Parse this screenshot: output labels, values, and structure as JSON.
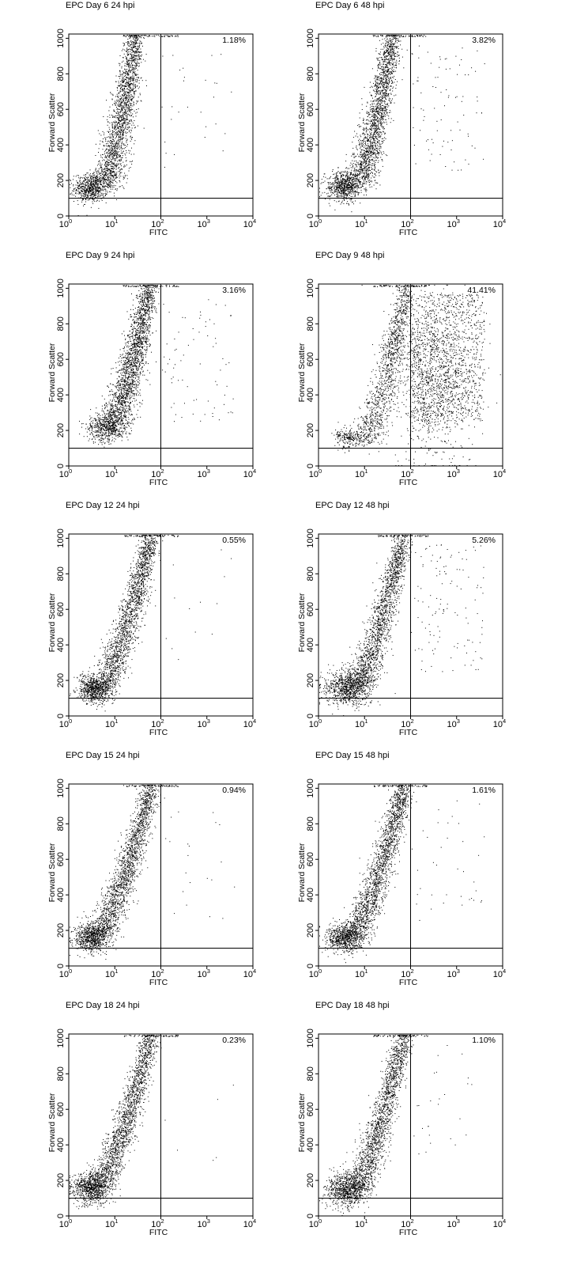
{
  "figure": {
    "x_axis_label": "FITC",
    "y_axis_label": "Forward Scatter",
    "x_tick_labels": [
      {
        "base": "10",
        "exp": "0"
      },
      {
        "base": "10",
        "exp": "1"
      },
      {
        "base": "10",
        "exp": "2"
      },
      {
        "base": "10",
        "exp": "3"
      },
      {
        "base": "10",
        "exp": "4"
      }
    ],
    "y_tick_labels": [
      "0",
      "200",
      "400",
      "600",
      "800",
      "1000"
    ],
    "colors": {
      "points": "#000000",
      "frame": "#000000",
      "background": "#ffffff"
    }
  },
  "chart_data": [
    {
      "type": "scatter",
      "title": "EPC Day 6 24 hpi",
      "percent_label": "1.18%",
      "percent_positive": 1.18,
      "xlabel": "FITC",
      "ylabel": "Forward Scatter",
      "xscale": "log",
      "xlim": [
        1,
        10000
      ],
      "ylim": [
        0,
        1024
      ],
      "gate": {
        "x": 100,
        "y": 100
      },
      "populations": [
        {
          "x_center": 3,
          "y_center": 160,
          "share": 0.25,
          "spread_log": 0.18,
          "spread_y": 40
        },
        {
          "x_from": 6,
          "x_to": 28,
          "y_from": 180,
          "y_to": 1010,
          "share": 0.75
        }
      ]
    },
    {
      "type": "scatter",
      "title": "EPC Day 6 48 hpi",
      "percent_label": "3.82%",
      "percent_positive": 3.82,
      "xlabel": "FITC",
      "ylabel": "Forward Scatter",
      "xscale": "log",
      "xlim": [
        1,
        10000
      ],
      "ylim": [
        0,
        1024
      ],
      "gate": {
        "x": 100,
        "y": 100
      },
      "populations": [
        {
          "x_center": 3.5,
          "y_center": 170,
          "share": 0.25,
          "spread_log": 0.18,
          "spread_y": 40
        },
        {
          "x_from": 7,
          "x_to": 40,
          "y_from": 180,
          "y_to": 1010,
          "share": 0.75
        }
      ]
    },
    {
      "type": "scatter",
      "title": "EPC Day 9 24 hpi",
      "percent_label": "3.16%",
      "percent_positive": 3.16,
      "xlabel": "FITC",
      "ylabel": "Forward Scatter",
      "xscale": "log",
      "xlim": [
        1,
        10000
      ],
      "ylim": [
        0,
        1024
      ],
      "gate": {
        "x": 100,
        "y": 100
      },
      "populations": [
        {
          "x_center": 5.5,
          "y_center": 215,
          "share": 0.15,
          "spread_log": 0.18,
          "spread_y": 40
        },
        {
          "x_from": 8,
          "x_to": 55,
          "y_from": 200,
          "y_to": 1010,
          "share": 0.85
        }
      ]
    },
    {
      "type": "scatter",
      "title": "EPC Day 9 48 hpi",
      "percent_label": "41.41%",
      "percent_positive": 41.41,
      "xlabel": "FITC",
      "ylabel": "Forward Scatter",
      "xscale": "log",
      "xlim": [
        1,
        10000
      ],
      "ylim": [
        0,
        1024
      ],
      "gate": {
        "x": 100,
        "y": 100
      },
      "populations": [
        {
          "x_center": 4.5,
          "y_center": 160,
          "share": 0.08,
          "spread_log": 0.15,
          "spread_y": 30
        },
        {
          "x_from": 10,
          "x_to": 80,
          "y_from": 150,
          "y_to": 1010,
          "share": 0.45
        },
        {
          "x_center": 300,
          "y_center": 500,
          "share": 0.47,
          "spread_log": 0.45,
          "spread_y": 220
        }
      ]
    },
    {
      "type": "scatter",
      "title": "EPC Day 12 24 hpi",
      "percent_label": "0.55%",
      "percent_positive": 0.55,
      "xlabel": "FITC",
      "ylabel": "Forward Scatter",
      "xscale": "log",
      "xlim": [
        1,
        10000
      ],
      "ylim": [
        0,
        1024
      ],
      "gate": {
        "x": 100,
        "y": 100
      },
      "populations": [
        {
          "x_center": 3.5,
          "y_center": 150,
          "share": 0.25,
          "spread_log": 0.18,
          "spread_y": 40
        },
        {
          "x_from": 5,
          "x_to": 60,
          "y_from": 150,
          "y_to": 1010,
          "share": 0.75
        }
      ]
    },
    {
      "type": "scatter",
      "title": "EPC Day 12 48 hpi",
      "percent_label": "5.26%",
      "percent_positive": 5.26,
      "xlabel": "FITC",
      "ylabel": "Forward Scatter",
      "xscale": "log",
      "xlim": [
        1,
        10000
      ],
      "ylim": [
        0,
        1024
      ],
      "gate": {
        "x": 100,
        "y": 100
      },
      "populations": [
        {
          "x_center": 4,
          "y_center": 160,
          "share": 0.3,
          "spread_log": 0.25,
          "spread_y": 50
        },
        {
          "x_from": 6,
          "x_to": 70,
          "y_from": 150,
          "y_to": 1010,
          "share": 0.7
        }
      ]
    },
    {
      "type": "scatter",
      "title": "EPC Day 15 24 hpi",
      "percent_label": "0.94%",
      "percent_positive": 0.94,
      "xlabel": "FITC",
      "ylabel": "Forward Scatter",
      "xscale": "log",
      "xlim": [
        1,
        10000
      ],
      "ylim": [
        0,
        1024
      ],
      "gate": {
        "x": 100,
        "y": 100
      },
      "populations": [
        {
          "x_center": 3,
          "y_center": 160,
          "share": 0.25,
          "spread_log": 0.18,
          "spread_y": 40
        },
        {
          "x_from": 4,
          "x_to": 60,
          "y_from": 150,
          "y_to": 1010,
          "share": 0.75
        }
      ]
    },
    {
      "type": "scatter",
      "title": "EPC Day 15 48 hpi",
      "percent_label": "1.61%",
      "percent_positive": 1.61,
      "xlabel": "FITC",
      "ylabel": "Forward Scatter",
      "xscale": "log",
      "xlim": [
        1,
        10000
      ],
      "ylim": [
        0,
        1024
      ],
      "gate": {
        "x": 100,
        "y": 100
      },
      "populations": [
        {
          "x_center": 3.5,
          "y_center": 160,
          "share": 0.25,
          "spread_log": 0.2,
          "spread_y": 40
        },
        {
          "x_from": 5,
          "x_to": 70,
          "y_from": 150,
          "y_to": 1010,
          "share": 0.75
        }
      ]
    },
    {
      "type": "scatter",
      "title": "EPC Day 18 24 hpi",
      "percent_label": "0.23%",
      "percent_positive": 0.23,
      "xlabel": "FITC",
      "ylabel": "Forward Scatter",
      "xscale": "log",
      "xlim": [
        1,
        10000
      ],
      "ylim": [
        0,
        1024
      ],
      "gate": {
        "x": 100,
        "y": 100
      },
      "populations": [
        {
          "x_center": 3,
          "y_center": 160,
          "share": 0.3,
          "spread_log": 0.2,
          "spread_y": 45
        },
        {
          "x_from": 4,
          "x_to": 60,
          "y_from": 150,
          "y_to": 1010,
          "share": 0.7
        }
      ]
    },
    {
      "type": "scatter",
      "title": "EPC Day 18 48 hpi",
      "percent_label": "1.10%",
      "percent_positive": 1.1,
      "xlabel": "FITC",
      "ylabel": "Forward Scatter",
      "xscale": "log",
      "xlim": [
        1,
        10000
      ],
      "ylim": [
        0,
        1024
      ],
      "gate": {
        "x": 100,
        "y": 100
      },
      "populations": [
        {
          "x_center": 4,
          "y_center": 150,
          "share": 0.3,
          "spread_log": 0.22,
          "spread_y": 45
        },
        {
          "x_from": 6,
          "x_to": 70,
          "y_from": 150,
          "y_to": 1010,
          "share": 0.7
        }
      ]
    }
  ]
}
